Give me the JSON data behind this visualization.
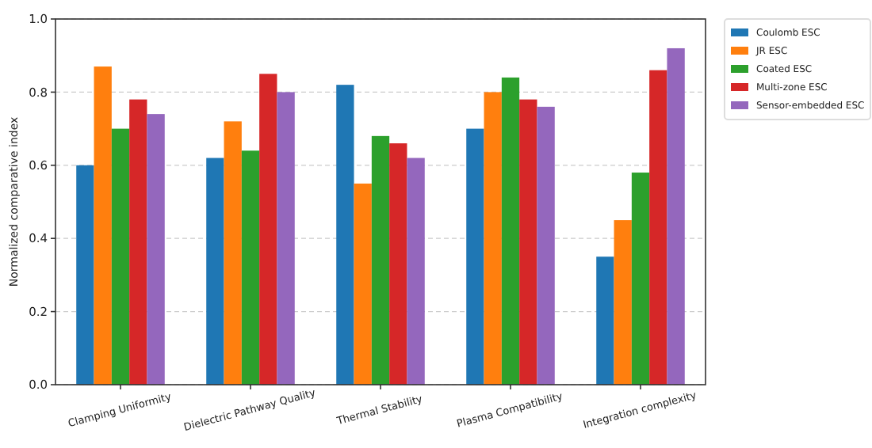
{
  "chart_data": {
    "type": "bar",
    "ylabel": "Normalized comparative index",
    "categories": [
      "Clamping Uniformity",
      "Dielectric Pathway Quality",
      "Thermal Stability",
      "Plasma Compatibility",
      "Integration complexity"
    ],
    "series": [
      {
        "name": "Coulomb ESC",
        "color": "#1f77b4",
        "values": [
          0.6,
          0.62,
          0.82,
          0.7,
          0.35
        ]
      },
      {
        "name": "JR ESC",
        "color": "#ff7f0e",
        "values": [
          0.87,
          0.72,
          0.55,
          0.8,
          0.45
        ]
      },
      {
        "name": "Coated ESC",
        "color": "#2ca02c",
        "values": [
          0.7,
          0.64,
          0.68,
          0.84,
          0.58
        ]
      },
      {
        "name": "Multi-zone ESC",
        "color": "#d62728",
        "values": [
          0.78,
          0.85,
          0.66,
          0.78,
          0.86
        ]
      },
      {
        "name": "Sensor-embedded ESC",
        "color": "#9467bd",
        "values": [
          0.74,
          0.8,
          0.62,
          0.76,
          0.92
        ]
      }
    ],
    "ylim": [
      0,
      1
    ],
    "yticks": [
      {
        "value": 0,
        "label": "0.0"
      },
      {
        "value": 0.2,
        "label": "0.2"
      },
      {
        "value": 0.4,
        "label": "0.4"
      },
      {
        "value": 0.6,
        "label": "0.6"
      },
      {
        "value": 0.8,
        "label": "0.8"
      },
      {
        "value": 1,
        "label": "1.0"
      }
    ],
    "grid": "y",
    "legend": "right"
  }
}
